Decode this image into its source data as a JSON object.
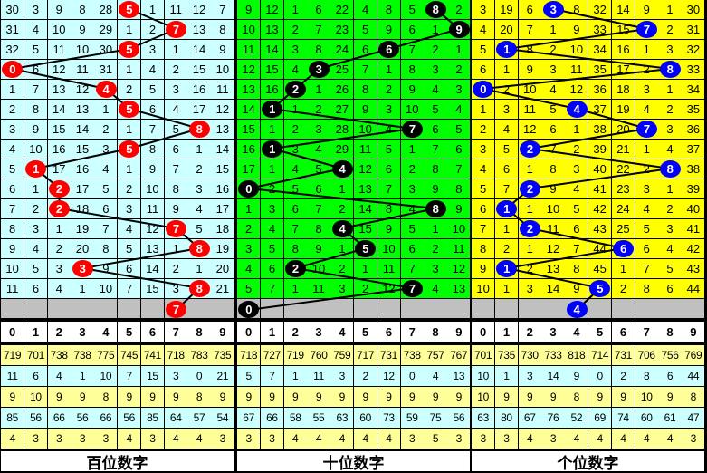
{
  "chart_data": {
    "type": "table",
    "colors": {
      "hundreds_bg": "#ccffff",
      "tens_bg": "#00ff00",
      "units_bg": "#ffff00",
      "hundreds_ball": "#ff0000",
      "tens_ball": "#000000",
      "units_ball": "#0000ff",
      "pending_row": "#c0c0c0",
      "stat_yellow": "#ffff99",
      "stat_cyan": "#ccffff"
    },
    "digits": [
      "0",
      "1",
      "2",
      "3",
      "4",
      "5",
      "6",
      "7",
      "8",
      "9"
    ],
    "panels": [
      {
        "label": "百位数字",
        "draws": [
          5,
          7,
          5,
          0,
          4,
          5,
          8,
          5,
          1,
          2,
          2,
          7,
          8,
          3,
          8
        ],
        "next": 7,
        "rows": [
          [
            30,
            3,
            9,
            8,
            28,
            5,
            1,
            11,
            12,
            7
          ],
          [
            31,
            4,
            10,
            9,
            29,
            1,
            2,
            7,
            13,
            8
          ],
          [
            32,
            5,
            11,
            10,
            30,
            5,
            3,
            1,
            14,
            9
          ],
          [
            0,
            6,
            12,
            11,
            31,
            1,
            4,
            2,
            15,
            10
          ],
          [
            1,
            7,
            13,
            12,
            4,
            2,
            5,
            3,
            16,
            11
          ],
          [
            2,
            8,
            14,
            13,
            1,
            5,
            6,
            4,
            17,
            12
          ],
          [
            3,
            9,
            15,
            14,
            2,
            1,
            7,
            5,
            8,
            13
          ],
          [
            4,
            10,
            16,
            15,
            3,
            5,
            8,
            6,
            1,
            14
          ],
          [
            5,
            1,
            17,
            16,
            4,
            1,
            9,
            7,
            2,
            15
          ],
          [
            6,
            1,
            2,
            17,
            5,
            2,
            10,
            8,
            3,
            16
          ],
          [
            7,
            2,
            2,
            18,
            6,
            3,
            11,
            9,
            4,
            17
          ],
          [
            8,
            3,
            1,
            19,
            7,
            4,
            12,
            7,
            5,
            18
          ],
          [
            9,
            4,
            2,
            20,
            8,
            5,
            13,
            1,
            8,
            19
          ],
          [
            10,
            5,
            3,
            3,
            9,
            6,
            14,
            2,
            1,
            20
          ],
          [
            11,
            6,
            4,
            1,
            10,
            7,
            15,
            3,
            8,
            21
          ]
        ],
        "stats": [
          [
            719,
            701,
            738,
            738,
            775,
            745,
            741,
            718,
            783,
            735
          ],
          [
            11,
            6,
            4,
            1,
            10,
            7,
            15,
            3,
            0,
            21
          ],
          [
            9,
            10,
            9,
            9,
            8,
            9,
            9,
            9,
            8,
            9
          ],
          [
            85,
            56,
            66,
            56,
            66,
            56,
            85,
            64,
            57,
            54
          ],
          [
            4,
            3,
            3,
            3,
            3,
            4,
            3,
            4,
            4,
            3
          ]
        ]
      },
      {
        "label": "十位数字",
        "draws": [
          8,
          9,
          6,
          3,
          2,
          1,
          7,
          1,
          4,
          0,
          8,
          4,
          5,
          2,
          7
        ],
        "next": 0,
        "rows": [
          [
            9,
            12,
            1,
            6,
            22,
            4,
            8,
            5,
            8,
            2
          ],
          [
            10,
            13,
            2,
            7,
            23,
            5,
            9,
            6,
            1,
            9
          ],
          [
            11,
            14,
            3,
            8,
            24,
            6,
            6,
            7,
            2,
            1
          ],
          [
            12,
            15,
            4,
            3,
            25,
            7,
            1,
            8,
            3,
            2
          ],
          [
            13,
            16,
            2,
            1,
            26,
            8,
            2,
            9,
            4,
            3
          ],
          [
            14,
            1,
            1,
            2,
            27,
            9,
            3,
            10,
            5,
            4
          ],
          [
            15,
            1,
            2,
            3,
            28,
            10,
            4,
            7,
            6,
            5
          ],
          [
            16,
            1,
            3,
            4,
            29,
            11,
            5,
            1,
            7,
            6
          ],
          [
            17,
            1,
            4,
            5,
            4,
            12,
            6,
            2,
            8,
            7
          ],
          [
            0,
            2,
            5,
            6,
            1,
            13,
            7,
            3,
            9,
            8
          ],
          [
            1,
            3,
            6,
            7,
            2,
            14,
            8,
            4,
            8,
            9
          ],
          [
            2,
            4,
            7,
            8,
            4,
            15,
            9,
            5,
            1,
            10
          ],
          [
            3,
            5,
            8,
            9,
            1,
            5,
            10,
            6,
            2,
            11
          ],
          [
            4,
            6,
            2,
            10,
            2,
            1,
            11,
            7,
            3,
            12
          ],
          [
            5,
            7,
            1,
            11,
            3,
            2,
            12,
            7,
            4,
            13
          ]
        ],
        "stats": [
          [
            718,
            727,
            719,
            760,
            759,
            717,
            731,
            738,
            757,
            767
          ],
          [
            5,
            7,
            1,
            11,
            3,
            2,
            12,
            0,
            4,
            13
          ],
          [
            9,
            9,
            9,
            9,
            9,
            9,
            9,
            9,
            9,
            9
          ],
          [
            67,
            66,
            58,
            55,
            63,
            60,
            73,
            59,
            75,
            56
          ],
          [
            3,
            3,
            4,
            4,
            4,
            4,
            4,
            3,
            5,
            3
          ]
        ]
      },
      {
        "label": "个位数字",
        "draws": [
          3,
          7,
          1,
          8,
          0,
          4,
          7,
          2,
          8,
          2,
          1,
          2,
          6,
          1,
          5
        ],
        "next": 4,
        "rows": [
          [
            3,
            19,
            6,
            3,
            8,
            32,
            14,
            9,
            1,
            30
          ],
          [
            4,
            20,
            7,
            1,
            9,
            33,
            15,
            7,
            2,
            31
          ],
          [
            5,
            1,
            8,
            2,
            10,
            34,
            16,
            1,
            3,
            32
          ],
          [
            6,
            1,
            9,
            3,
            11,
            35,
            17,
            2,
            8,
            33
          ],
          [
            0,
            2,
            10,
            4,
            12,
            36,
            18,
            3,
            1,
            34
          ],
          [
            1,
            3,
            11,
            5,
            4,
            37,
            19,
            4,
            2,
            35
          ],
          [
            2,
            4,
            12,
            6,
            1,
            38,
            20,
            7,
            3,
            36
          ],
          [
            3,
            5,
            2,
            7,
            2,
            39,
            21,
            1,
            4,
            37
          ],
          [
            4,
            6,
            1,
            8,
            3,
            40,
            22,
            2,
            8,
            38
          ],
          [
            5,
            7,
            2,
            9,
            4,
            41,
            23,
            3,
            1,
            39
          ],
          [
            6,
            1,
            1,
            10,
            5,
            42,
            24,
            4,
            2,
            40
          ],
          [
            7,
            1,
            2,
            11,
            6,
            43,
            25,
            5,
            3,
            41
          ],
          [
            8,
            2,
            1,
            12,
            7,
            44,
            6,
            6,
            4,
            42
          ],
          [
            9,
            1,
            2,
            13,
            8,
            45,
            1,
            7,
            5,
            43
          ],
          [
            10,
            1,
            3,
            14,
            9,
            5,
            2,
            8,
            6,
            44
          ]
        ],
        "stats": [
          [
            701,
            735,
            730,
            733,
            818,
            714,
            731,
            706,
            756,
            769
          ],
          [
            10,
            1,
            3,
            14,
            9,
            0,
            2,
            8,
            6,
            44
          ],
          [
            10,
            9,
            9,
            9,
            8,
            9,
            9,
            10,
            9,
            8
          ],
          [
            63,
            80,
            67,
            76,
            52,
            69,
            74,
            60,
            61,
            47
          ],
          [
            3,
            3,
            4,
            3,
            4,
            4,
            4,
            4,
            4,
            3
          ]
        ]
      }
    ]
  }
}
